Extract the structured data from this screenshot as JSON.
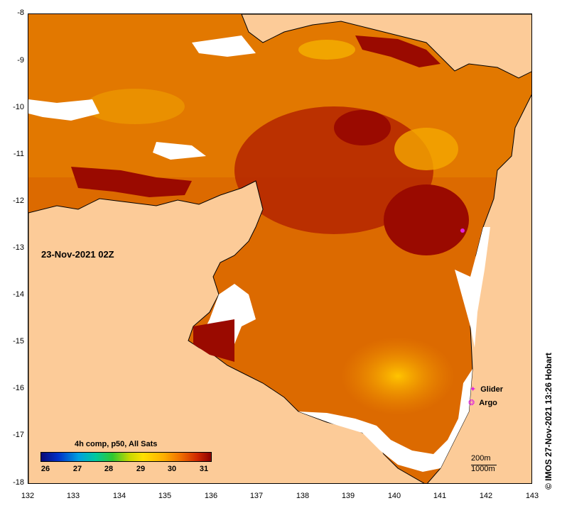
{
  "map": {
    "date_label": "23-Nov-2021 02Z",
    "x_ticks": [
      "132",
      "133",
      "134",
      "135",
      "136",
      "137",
      "138",
      "139",
      "140",
      "141",
      "142",
      "143"
    ],
    "y_ticks": [
      "-8",
      "-9",
      "-10",
      "-11",
      "-12",
      "-13",
      "-14",
      "-15",
      "-16",
      "-17",
      "-18"
    ]
  },
  "legend": {
    "glider_label": "Glider",
    "argo_label": "Argo",
    "glider_symbol": "✦",
    "argo_symbol": "❂",
    "symbol_color": "#e020e0"
  },
  "colorbar": {
    "title": "4h comp, p50, All Sats",
    "labels": [
      "26",
      "27",
      "28",
      "29",
      "30",
      "31"
    ]
  },
  "scale": {
    "label_200": "200m",
    "label_1000": "1000m"
  },
  "credit": "© IMOS 27-Nov-2021 13:26 Hobart",
  "colors": {
    "land": "#fccb98",
    "sst_dark": "#9a0a00",
    "sst_mid": "#d86000",
    "sst_light": "#ffc000"
  }
}
